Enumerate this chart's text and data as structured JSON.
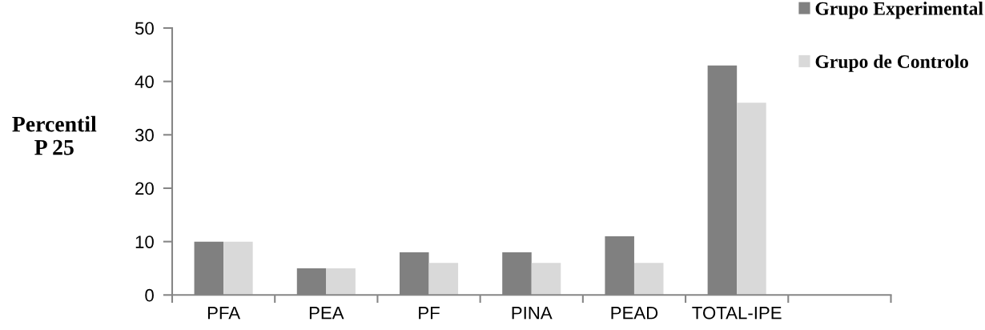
{
  "chart_data": {
    "type": "bar",
    "ylabel": "Percentil\nP 25",
    "categories": [
      "PFA",
      "PEA",
      "PF",
      "PINA",
      "PEAD",
      "TOTAL-IPE",
      null
    ],
    "series": [
      {
        "name": "Grupo Experimental",
        "color": "#808080",
        "values": [
          10,
          5,
          8,
          8,
          11,
          43,
          null
        ]
      },
      {
        "name": "Grupo de Controlo",
        "color": "#d9d9d9",
        "values": [
          10,
          5,
          6,
          6,
          6,
          36,
          null
        ]
      }
    ],
    "ylim": [
      0,
      50
    ],
    "yticks": [
      0,
      10,
      20,
      30,
      40,
      50
    ],
    "legend": "top right",
    "grid": false
  }
}
